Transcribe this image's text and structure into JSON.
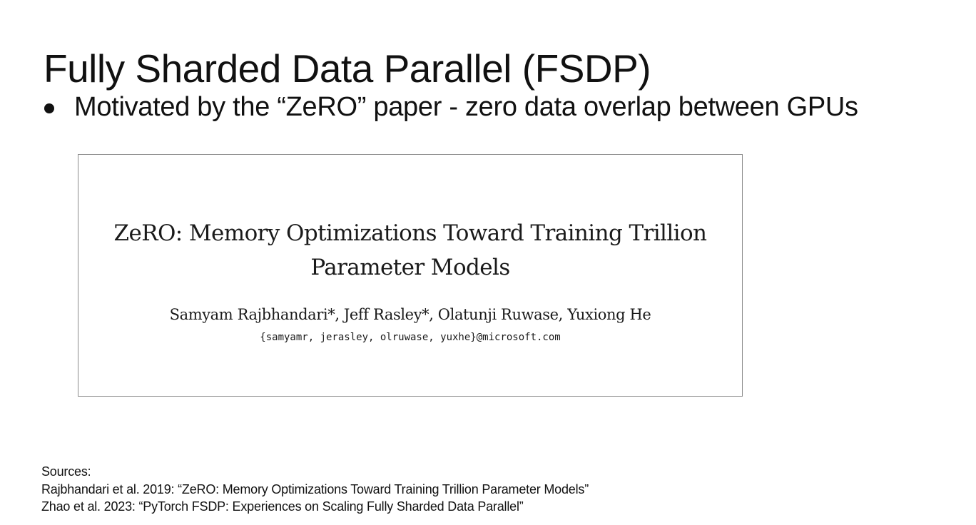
{
  "slide": {
    "title": "Fully Sharded Data Parallel (FSDP)",
    "bullets": [
      "Motivated by the “ZeRO” paper - zero data overlap between GPUs"
    ]
  },
  "paper": {
    "title_line1": "ZeRO: Memory Optimizations Toward Training Trillion",
    "title_line2": "Parameter Models",
    "authors": "Samyam Rajbhandari*, Jeff Rasley*, Olatunji Ruwase, Yuxiong He",
    "emails": "{samyamr, jerasley, olruwase, yuxhe}@microsoft.com"
  },
  "sources": {
    "heading": "Sources:",
    "items": [
      "Rajbhandari et al. 2019: “ZeRO: Memory Optimizations Toward Training Trillion Parameter Models”",
      "Zhao et al. 2023: “PyTorch FSDP: Experiences on Scaling Fully Sharded Data Parallel”"
    ]
  }
}
